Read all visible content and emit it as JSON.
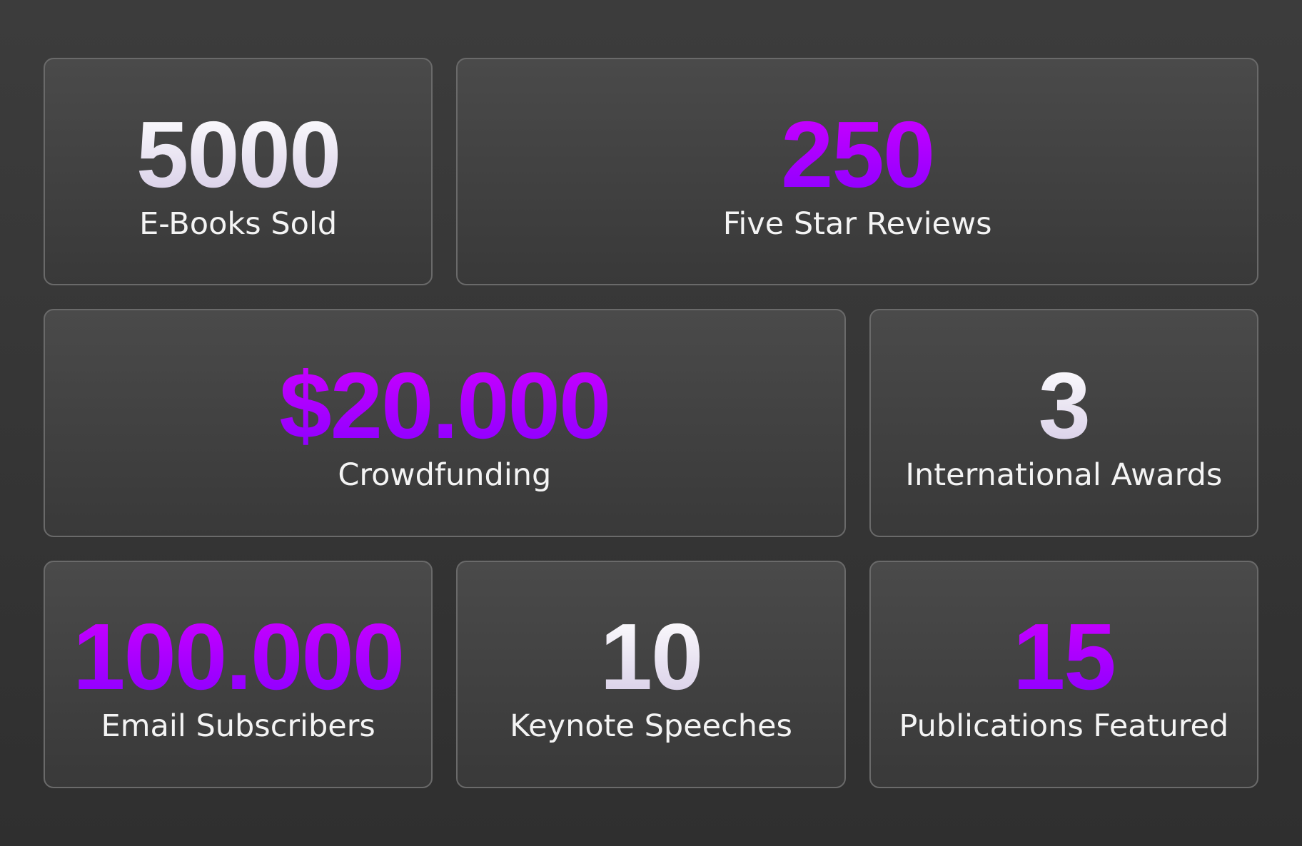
{
  "cards": [
    {
      "value": "5000",
      "label": "E-Books Sold",
      "color": [
        "#ffffff",
        "#d6cce6"
      ]
    },
    {
      "value": "250",
      "label": "Five Star Reviews",
      "color": [
        "#cc00ff",
        "#8a00ff"
      ]
    },
    {
      "value": "$20.000",
      "label": "Crowdfunding",
      "color": [
        "#cc00ff",
        "#8a00ff"
      ]
    },
    {
      "value": "3",
      "label": "International Awards",
      "color": [
        "#ffffff",
        "#d6cce6"
      ]
    },
    {
      "value": "100.000",
      "label": "Email Subscribers",
      "color": [
        "#cc00ff",
        "#8a00ff"
      ]
    },
    {
      "value": "10",
      "label": "Keynote Speeches",
      "color": [
        "#ffffff",
        "#d6cce6"
      ]
    },
    {
      "value": "15",
      "label": "Publications Featured",
      "color": [
        "#cc00ff",
        "#8a00ff"
      ]
    }
  ]
}
